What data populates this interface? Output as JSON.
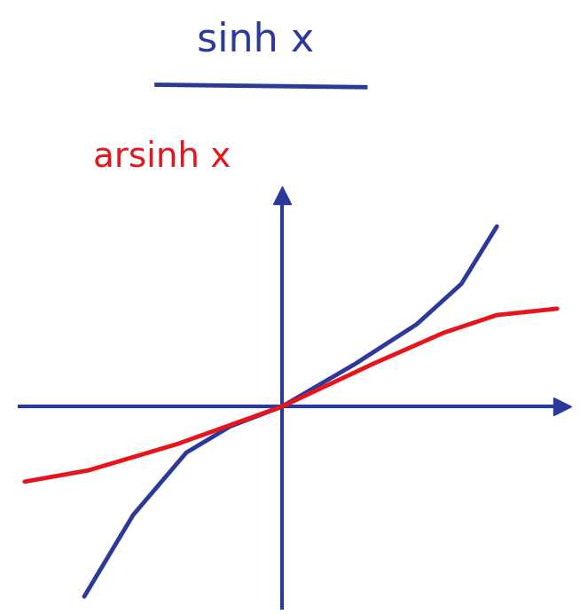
{
  "chart_data": {
    "type": "line",
    "title": "sinh x",
    "subtitle": "arsinh x",
    "series": [
      {
        "color": "#2b3a9a",
        "line_style": "solid",
        "x": [
          -2.79,
          -2.1,
          -1.35,
          -0.73,
          0,
          1.03,
          1.9,
          2.53,
          3.03
        ],
        "values": [
          -2.68,
          -1.53,
          -0.65,
          -0.28,
          0,
          0.6,
          1.16,
          1.73,
          2.54
        ]
      },
      {
        "color": "#e8141b",
        "line_style": "solid",
        "x": [
          -3.63,
          -2.73,
          -1.48,
          0,
          1.28,
          2.28,
          3.03,
          3.88
        ],
        "values": [
          -1.06,
          -0.9,
          -0.53,
          0,
          0.6,
          1.04,
          1.29,
          1.38
        ]
      }
    ],
    "xlim": [
      -3.7,
      3.95
    ],
    "ylim": [
      -2.84,
      2.98
    ],
    "xticks": [],
    "yticks": [],
    "tick_labels": false,
    "grid": false
  }
}
